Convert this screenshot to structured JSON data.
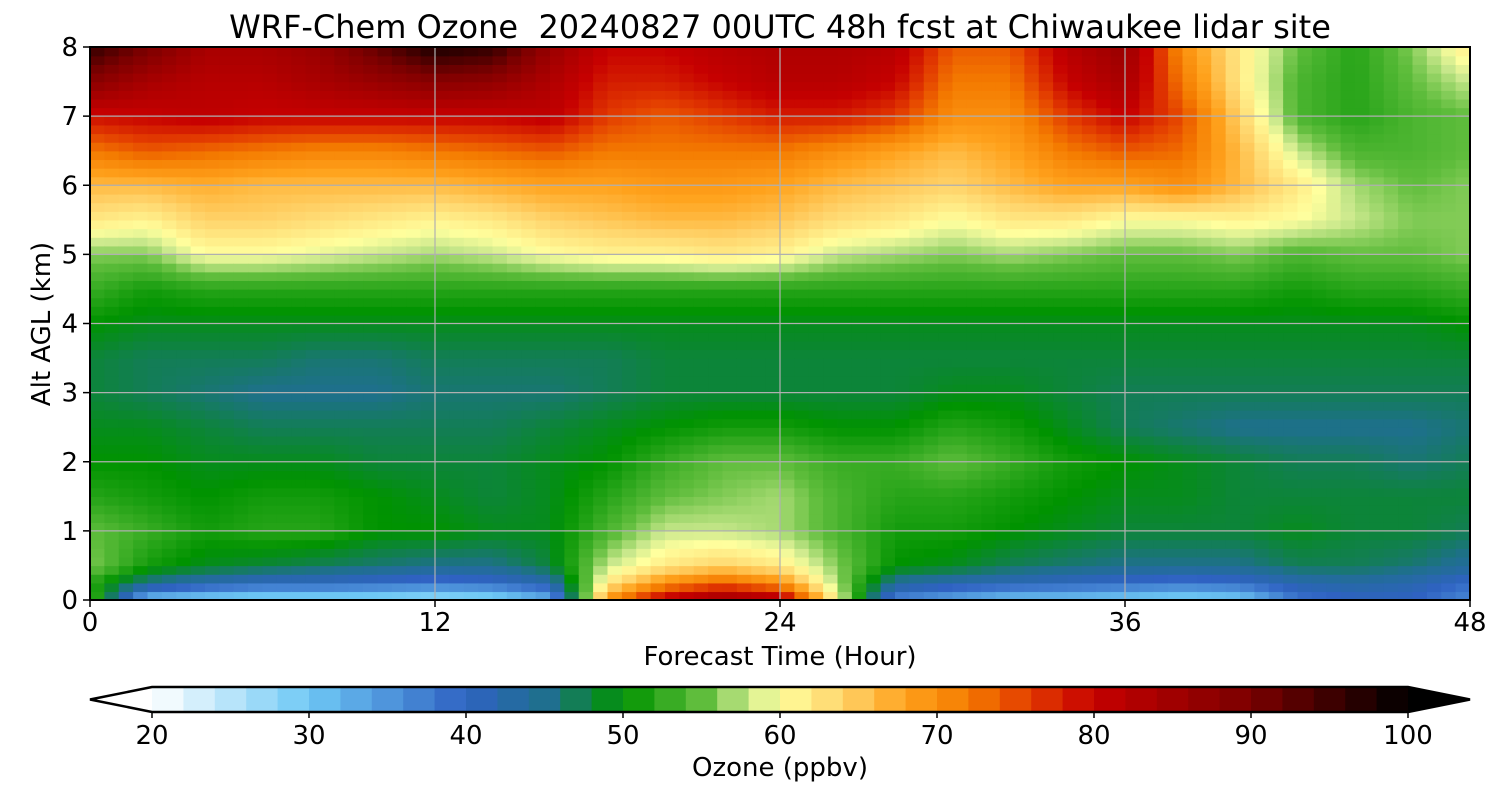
{
  "chart_data": {
    "type": "heatmap",
    "title": "WRF-Chem Ozone  20240827 00UTC 48h fcst at Chiwaukee lidar site",
    "xlabel": "Forecast Time (Hour)",
    "ylabel": "Alt AGL (km)",
    "xlim": [
      0,
      48
    ],
    "ylim": [
      0,
      8
    ],
    "x_ticks": [
      0,
      12,
      24,
      36,
      48
    ],
    "y_ticks": [
      0,
      1,
      2,
      3,
      4,
      5,
      6,
      7,
      8
    ],
    "grid": true,
    "x": [
      0,
      2,
      4,
      6,
      8,
      10,
      12,
      14,
      16,
      18,
      20,
      22,
      24,
      26,
      28,
      30,
      32,
      34,
      36,
      38,
      40,
      42,
      44,
      46,
      48
    ],
    "y": [
      0,
      0.25,
      0.5,
      1,
      1.5,
      2,
      2.5,
      3,
      3.5,
      4,
      4.5,
      5,
      5.5,
      6,
      6.5,
      7,
      7.5,
      8
    ],
    "z": [
      [
        55,
        30,
        28,
        27,
        27,
        27,
        26,
        27,
        32,
        70,
        82,
        86,
        84,
        60,
        36,
        33,
        30,
        30,
        29,
        28,
        29,
        38,
        40,
        40,
        36
      ],
      [
        52,
        45,
        42,
        40,
        40,
        39,
        38,
        39,
        42,
        62,
        70,
        74,
        70,
        57,
        44,
        42,
        41,
        40,
        39,
        38,
        39,
        42,
        43,
        42,
        39
      ],
      [
        56,
        51,
        49,
        48,
        47,
        46,
        45,
        45,
        48,
        58,
        62,
        64,
        62,
        56,
        50,
        49,
        47,
        46,
        45,
        45,
        45,
        47,
        47,
        46,
        44
      ],
      [
        55,
        53,
        51,
        52,
        52,
        50,
        50,
        49,
        49,
        54,
        58,
        58,
        57,
        54,
        51,
        51,
        50,
        49,
        48,
        48,
        48,
        49,
        48,
        48,
        47
      ],
      [
        52,
        51,
        50,
        51,
        51,
        50,
        49,
        48,
        49,
        52,
        55,
        56,
        57,
        54,
        52,
        52,
        51,
        50,
        49,
        49,
        48,
        48,
        48,
        48,
        48
      ],
      [
        50,
        50,
        49,
        49,
        49,
        48,
        48,
        48,
        49,
        50,
        53,
        55,
        55,
        53,
        53,
        55,
        53,
        51,
        50,
        49,
        48,
        47,
        47,
        46,
        47
      ],
      [
        49,
        49,
        48,
        47,
        47,
        47,
        47,
        47,
        48,
        49,
        50,
        51,
        51,
        50,
        50,
        52,
        51,
        49,
        47,
        46,
        45,
        45,
        45,
        45,
        46
      ],
      [
        48,
        47,
        46,
        45,
        45,
        45,
        46,
        46,
        46,
        47,
        48,
        48,
        48,
        48,
        48,
        49,
        49,
        48,
        47,
        47,
        47,
        47,
        47,
        47,
        47
      ],
      [
        48,
        47,
        47,
        47,
        46,
        46,
        47,
        47,
        47,
        47,
        48,
        48,
        48,
        48,
        48,
        48,
        48,
        48,
        48,
        48,
        48,
        48,
        48,
        48,
        48
      ],
      [
        50,
        49,
        49,
        49,
        49,
        49,
        49,
        49,
        49,
        49,
        49,
        49,
        49,
        49,
        49,
        49,
        49,
        49,
        49,
        49,
        49,
        49,
        49,
        49,
        50
      ],
      [
        53,
        51,
        52,
        52,
        52,
        52,
        52,
        52,
        52,
        52,
        52,
        52,
        52,
        52,
        52,
        52,
        52,
        52,
        52,
        52,
        52,
        51,
        52,
        52,
        53
      ],
      [
        56,
        56,
        60,
        60,
        59,
        58,
        57,
        58,
        60,
        61,
        61,
        62,
        61,
        58,
        57,
        56,
        57,
        56,
        55,
        55,
        56,
        54,
        55,
        55,
        56
      ],
      [
        62,
        61,
        64,
        64,
        63,
        62,
        61,
        62,
        64,
        65,
        66,
        66,
        65,
        63,
        62,
        60,
        62,
        62,
        60,
        60,
        61,
        60,
        58,
        56,
        56
      ],
      [
        66,
        66,
        67,
        66,
        66,
        66,
        66,
        67,
        68,
        68,
        69,
        69,
        68,
        66,
        65,
        64,
        66,
        68,
        68,
        70,
        66,
        62,
        57,
        55,
        56
      ],
      [
        72,
        74,
        73,
        72,
        71,
        71,
        72,
        73,
        74,
        72,
        72,
        72,
        72,
        70,
        68,
        66,
        68,
        72,
        74,
        73,
        66,
        58,
        54,
        54,
        55
      ],
      [
        79,
        80,
        81,
        80,
        80,
        80,
        80,
        80,
        81,
        76,
        74,
        76,
        78,
        78,
        76,
        70,
        70,
        76,
        80,
        75,
        64,
        54,
        52,
        54,
        55
      ],
      [
        88,
        84,
        82,
        82,
        84,
        86,
        88,
        87,
        83,
        78,
        78,
        80,
        82,
        82,
        80,
        72,
        72,
        80,
        84,
        72,
        62,
        54,
        52,
        55,
        58
      ],
      [
        96,
        90,
        84,
        84,
        86,
        92,
        98,
        96,
        86,
        80,
        80,
        82,
        83,
        83,
        82,
        74,
        74,
        82,
        86,
        70,
        62,
        55,
        52,
        56,
        62
      ]
    ],
    "colorbar": {
      "label": "Ozone  (ppbv)",
      "min": 20,
      "max": 100,
      "ticks": [
        20,
        30,
        40,
        50,
        60,
        70,
        80,
        90,
        100
      ],
      "extend": "both",
      "stops": [
        {
          "v": 20,
          "c": "#ffffff"
        },
        {
          "v": 30,
          "c": "#6ec8f5"
        },
        {
          "v": 40,
          "c": "#2f62c2"
        },
        {
          "v": 45,
          "c": "#1f6f8f"
        },
        {
          "v": 50,
          "c": "#009300"
        },
        {
          "v": 55,
          "c": "#5fbd3c"
        },
        {
          "v": 58,
          "c": "#c9e88c"
        },
        {
          "v": 60,
          "c": "#ffff9e"
        },
        {
          "v": 64,
          "c": "#ffd36a"
        },
        {
          "v": 68,
          "c": "#ffa21c"
        },
        {
          "v": 72,
          "c": "#f47b00"
        },
        {
          "v": 76,
          "c": "#e23a00"
        },
        {
          "v": 80,
          "c": "#c60000"
        },
        {
          "v": 90,
          "c": "#7a0000"
        },
        {
          "v": 100,
          "c": "#000000"
        }
      ]
    }
  }
}
